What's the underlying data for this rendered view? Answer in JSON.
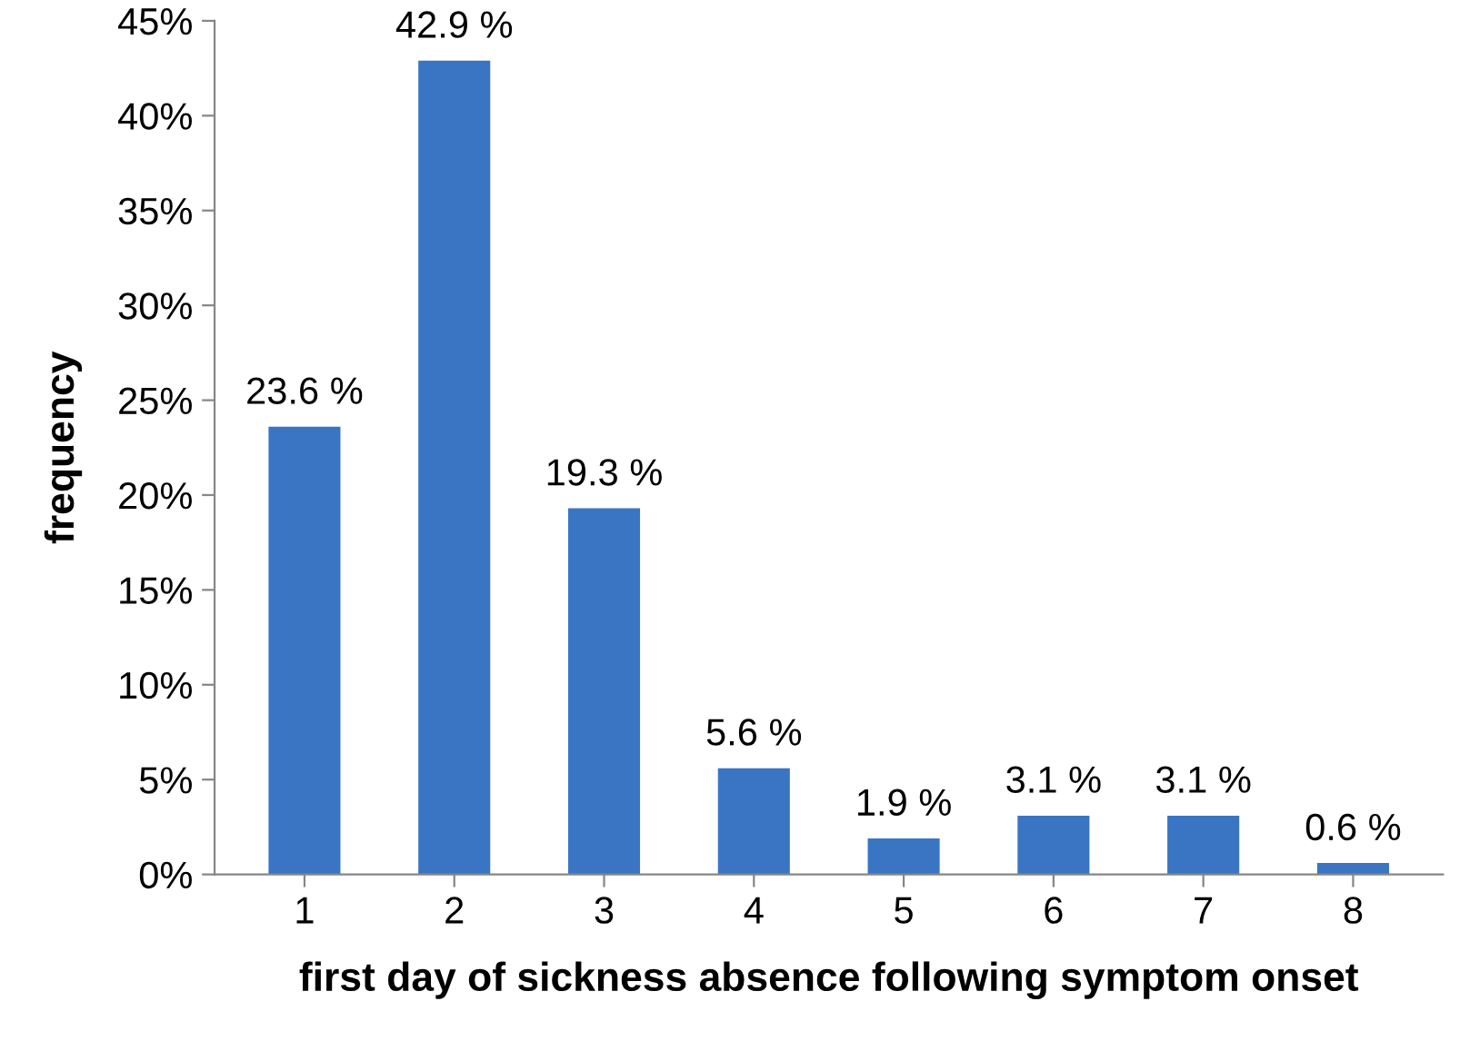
{
  "chart_data": {
    "type": "bar",
    "xlabel": "first day of sickness absence following symptom onset",
    "ylabel": "frequency",
    "categories": [
      "1",
      "2",
      "3",
      "4",
      "5",
      "6",
      "7",
      "8"
    ],
    "values": [
      23.6,
      42.9,
      19.3,
      5.6,
      1.9,
      3.1,
      3.1,
      0.6
    ],
    "value_labels": [
      "23.6 %",
      "42.9 %",
      "19.3 %",
      "5.6 %",
      "1.9 %",
      "3.1 %",
      "3.1 %",
      "0.6 %"
    ],
    "color": "#3a75c4",
    "ylim": [
      0,
      45
    ],
    "yticks": [
      {
        "value": 0,
        "label": "0%"
      },
      {
        "value": 5,
        "label": "5%"
      },
      {
        "value": 10,
        "label": "10%"
      },
      {
        "value": 15,
        "label": "15%"
      },
      {
        "value": 20,
        "label": "20%"
      },
      {
        "value": 25,
        "label": "25%"
      },
      {
        "value": 30,
        "label": "30%"
      },
      {
        "value": 35,
        "label": "35%"
      },
      {
        "value": 40,
        "label": "40%"
      },
      {
        "value": 45,
        "label": "45%"
      }
    ],
    "grid": false,
    "legend": false
  }
}
